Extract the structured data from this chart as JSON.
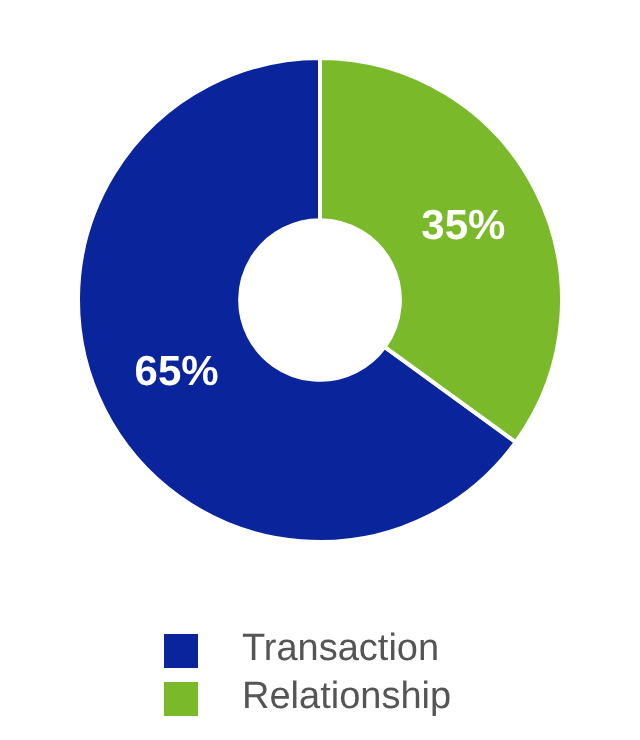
{
  "chart_data": {
    "type": "donut",
    "categories": [
      "Transaction",
      "Relationship"
    ],
    "values": [
      65,
      35
    ],
    "colors": [
      "#0a259c",
      "#7ab929"
    ],
    "value_labels": [
      "65%",
      "35%"
    ],
    "legend": "bottom"
  }
}
